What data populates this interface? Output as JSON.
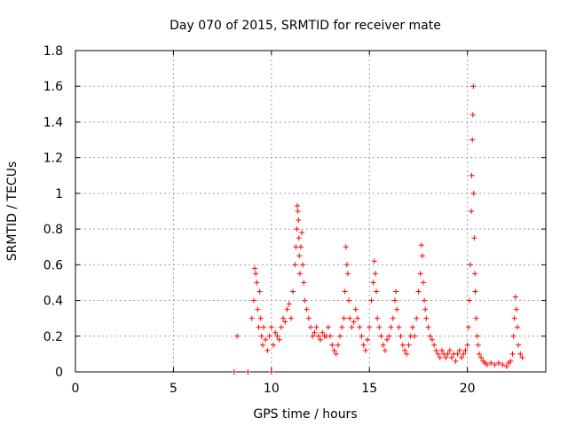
{
  "chart_data": {
    "type": "scatter",
    "title": "Day 070 of 2015, SRMTID for receiver mate",
    "xlabel": "GPS time / hours",
    "ylabel": "SRMTID / TECUs",
    "xlim": [
      0,
      24
    ],
    "ylim": [
      0,
      1.8
    ],
    "xticks": [
      0,
      5,
      10,
      15,
      20
    ],
    "yticks": [
      0,
      0.2,
      0.4,
      0.6,
      0.8,
      1,
      1.2,
      1.4,
      1.6,
      1.8
    ],
    "xtick_labels": [
      "0",
      "5",
      "10",
      "15",
      "20"
    ],
    "ytick_labels": [
      "0",
      "0.2",
      "0.4",
      "0.6",
      "0.8",
      "1",
      "1.2",
      "1.4",
      "1.6",
      "1.8"
    ],
    "grid": true,
    "marker": "+",
    "color": "#ff0000",
    "series": [
      {
        "name": "SRMTID",
        "x": [
          8.1,
          8.25,
          8.8,
          10.0,
          9.0,
          9.1,
          9.15,
          9.2,
          9.25,
          9.3,
          9.35,
          9.4,
          9.45,
          9.5,
          9.55,
          9.6,
          9.7,
          9.8,
          9.9,
          10.0,
          10.1,
          10.2,
          10.3,
          10.4,
          10.5,
          10.6,
          10.7,
          10.8,
          10.9,
          11.0,
          11.1,
          11.2,
          11.25,
          11.3,
          11.32,
          11.35,
          11.38,
          11.4,
          11.42,
          11.45,
          11.5,
          11.55,
          11.6,
          11.65,
          11.7,
          11.8,
          11.9,
          12.0,
          12.1,
          12.2,
          12.3,
          12.4,
          12.5,
          12.6,
          12.7,
          12.8,
          12.9,
          13.0,
          13.1,
          13.2,
          13.3,
          13.4,
          13.5,
          13.6,
          13.7,
          13.75,
          13.8,
          13.85,
          13.9,
          13.95,
          14.0,
          14.1,
          14.2,
          14.3,
          14.4,
          14.5,
          14.6,
          14.7,
          14.8,
          14.9,
          15.0,
          15.1,
          15.2,
          15.25,
          15.3,
          15.35,
          15.4,
          15.5,
          15.6,
          15.7,
          15.8,
          15.9,
          16.0,
          16.1,
          16.2,
          16.3,
          16.35,
          16.4,
          16.5,
          16.6,
          16.7,
          16.8,
          16.9,
          17.0,
          17.1,
          17.2,
          17.3,
          17.4,
          17.5,
          17.6,
          17.65,
          17.7,
          17.75,
          17.8,
          17.85,
          17.9,
          18.0,
          18.1,
          18.2,
          18.3,
          18.4,
          18.5,
          18.6,
          18.7,
          18.8,
          18.9,
          19.0,
          19.1,
          19.2,
          19.3,
          19.4,
          19.5,
          19.6,
          19.7,
          19.8,
          19.9,
          20.0,
          20.05,
          20.1,
          20.15,
          20.2,
          20.22,
          20.25,
          20.28,
          20.3,
          20.32,
          20.35,
          20.38,
          20.4,
          20.45,
          20.5,
          20.55,
          20.6,
          20.7,
          20.8,
          20.9,
          21.0,
          21.2,
          21.4,
          21.6,
          21.8,
          22.0,
          22.1,
          22.2,
          22.3,
          22.35,
          22.4,
          22.45,
          22.5,
          22.55,
          22.6,
          22.7,
          22.8
        ],
        "y": [
          0.0,
          0.2,
          0.0,
          0.0,
          0.3,
          0.4,
          0.58,
          0.55,
          0.5,
          0.35,
          0.25,
          0.45,
          0.3,
          0.2,
          0.15,
          0.25,
          0.18,
          0.12,
          0.2,
          0.25,
          0.15,
          0.22,
          0.2,
          0.18,
          0.25,
          0.3,
          0.28,
          0.35,
          0.38,
          0.3,
          0.45,
          0.6,
          0.7,
          0.8,
          0.93,
          0.9,
          0.85,
          0.75,
          0.65,
          0.55,
          0.7,
          0.78,
          0.6,
          0.5,
          0.4,
          0.35,
          0.3,
          0.25,
          0.2,
          0.22,
          0.25,
          0.2,
          0.18,
          0.22,
          0.2,
          0.2,
          0.25,
          0.2,
          0.15,
          0.12,
          0.1,
          0.15,
          0.2,
          0.25,
          0.3,
          0.45,
          0.7,
          0.6,
          0.55,
          0.4,
          0.3,
          0.25,
          0.28,
          0.35,
          0.3,
          0.25,
          0.2,
          0.15,
          0.12,
          0.18,
          0.25,
          0.4,
          0.5,
          0.62,
          0.55,
          0.45,
          0.3,
          0.25,
          0.2,
          0.15,
          0.12,
          0.18,
          0.2,
          0.25,
          0.3,
          0.4,
          0.45,
          0.35,
          0.25,
          0.2,
          0.15,
          0.12,
          0.1,
          0.15,
          0.2,
          0.25,
          0.2,
          0.3,
          0.45,
          0.55,
          0.71,
          0.65,
          0.5,
          0.4,
          0.35,
          0.3,
          0.25,
          0.2,
          0.18,
          0.15,
          0.12,
          0.1,
          0.08,
          0.12,
          0.1,
          0.08,
          0.1,
          0.12,
          0.08,
          0.1,
          0.06,
          0.1,
          0.12,
          0.08,
          0.1,
          0.12,
          0.15,
          0.25,
          0.4,
          0.6,
          0.9,
          1.1,
          1.3,
          1.44,
          1.6,
          1.0,
          0.75,
          0.55,
          0.45,
          0.3,
          0.2,
          0.15,
          0.1,
          0.08,
          0.06,
          0.05,
          0.04,
          0.05,
          0.04,
          0.05,
          0.04,
          0.03,
          0.05,
          0.06,
          0.1,
          0.2,
          0.3,
          0.42,
          0.35,
          0.25,
          0.15,
          0.1,
          0.08
        ]
      }
    ]
  }
}
